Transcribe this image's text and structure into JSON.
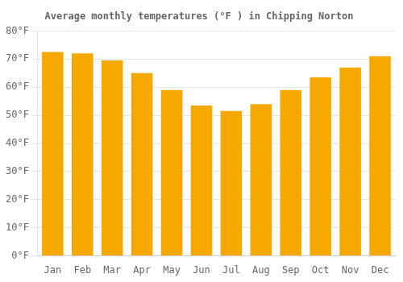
{
  "chart_data": {
    "type": "bar",
    "title": "Average monthly temperatures (°F ) in Chipping Norton",
    "categories": [
      "Jan",
      "Feb",
      "Mar",
      "Apr",
      "May",
      "Jun",
      "Jul",
      "Aug",
      "Sep",
      "Oct",
      "Nov",
      "Dec"
    ],
    "values": [
      72.5,
      72,
      69.5,
      65,
      59,
      53.5,
      51.5,
      54,
      59,
      63.5,
      67,
      71
    ],
    "color": "#F5A800",
    "ylim": [
      0,
      80
    ],
    "yticks": [
      {
        "value": 0,
        "label": "0°F"
      },
      {
        "value": 10,
        "label": "10°F"
      },
      {
        "value": 20,
        "label": "20°F"
      },
      {
        "value": 30,
        "label": "30°F"
      },
      {
        "value": 40,
        "label": "40°F"
      },
      {
        "value": 50,
        "label": "50°F"
      },
      {
        "value": 60,
        "label": "60°F"
      },
      {
        "value": 70,
        "label": "70°F"
      },
      {
        "value": 80,
        "label": "80°F"
      }
    ],
    "grid": true
  }
}
